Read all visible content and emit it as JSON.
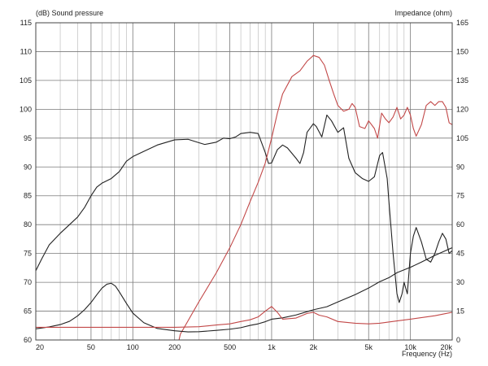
{
  "chart_data": {
    "type": "line",
    "title": "",
    "left_axis": {
      "label": "(dB)  Sound pressure",
      "range": [
        60,
        115
      ],
      "ticks": [
        60,
        65,
        70,
        75,
        80,
        85,
        90,
        95,
        100,
        105,
        110,
        115
      ]
    },
    "right_axis": {
      "label": "Impedance  (ohm)",
      "range": [
        0,
        165
      ],
      "ticks": [
        0,
        15,
        30,
        45,
        60,
        75,
        90,
        105,
        120,
        135,
        150,
        165
      ]
    },
    "x_axis": {
      "label": "Frequency  (Hz)",
      "scale": "log",
      "range": [
        20,
        20000
      ],
      "ticks": [
        {
          "value": 20,
          "label": "20"
        },
        {
          "value": 50,
          "label": "50"
        },
        {
          "value": 100,
          "label": "100"
        },
        {
          "value": 200,
          "label": "200"
        },
        {
          "value": 500,
          "label": "500"
        },
        {
          "value": 1000,
          "label": "1k"
        },
        {
          "value": 2000,
          "label": "2k"
        },
        {
          "value": 5000,
          "label": "5k"
        },
        {
          "value": 10000,
          "label": "10k"
        },
        {
          "value": 20000,
          "label": "20k"
        }
      ]
    },
    "grid": true,
    "series": [
      {
        "color": "#222222",
        "axis": "left",
        "points": [
          [
            20,
            72
          ],
          [
            22,
            74
          ],
          [
            25,
            76.5
          ],
          [
            30,
            78.5
          ],
          [
            35,
            80
          ],
          [
            40,
            81.3
          ],
          [
            45,
            83
          ],
          [
            50,
            85
          ],
          [
            55,
            86.5
          ],
          [
            60,
            87.2
          ],
          [
            70,
            88
          ],
          [
            80,
            89.2
          ],
          [
            90,
            91
          ],
          [
            100,
            91.8
          ],
          [
            120,
            92.7
          ],
          [
            150,
            93.8
          ],
          [
            200,
            94.7
          ],
          [
            250,
            94.8
          ],
          [
            300,
            94.2
          ],
          [
            330,
            93.9
          ],
          [
            400,
            94.3
          ],
          [
            450,
            95
          ],
          [
            500,
            94.9
          ],
          [
            550,
            95.2
          ],
          [
            600,
            95.8
          ],
          [
            700,
            96
          ],
          [
            800,
            95.8
          ],
          [
            900,
            92.5
          ],
          [
            950,
            90.6
          ],
          [
            1000,
            90.7
          ],
          [
            1100,
            93
          ],
          [
            1200,
            93.8
          ],
          [
            1300,
            93.3
          ],
          [
            1500,
            91.5
          ],
          [
            1600,
            90.6
          ],
          [
            1700,
            92.5
          ],
          [
            1800,
            96
          ],
          [
            2000,
            97.5
          ],
          [
            2100,
            97
          ],
          [
            2300,
            95.2
          ],
          [
            2500,
            99
          ],
          [
            2700,
            98
          ],
          [
            3000,
            96
          ],
          [
            3300,
            96.8
          ],
          [
            3600,
            91.5
          ],
          [
            4000,
            89
          ],
          [
            4500,
            88
          ],
          [
            5000,
            87.5
          ],
          [
            5500,
            88.3
          ],
          [
            6000,
            92
          ],
          [
            6300,
            92.5
          ],
          [
            6800,
            88
          ],
          [
            7000,
            84
          ],
          [
            7500,
            75
          ],
          [
            8000,
            68
          ],
          [
            8300,
            66.5
          ],
          [
            8700,
            68
          ],
          [
            9000,
            70
          ],
          [
            9500,
            68
          ],
          [
            10000,
            75
          ],
          [
            10500,
            78
          ],
          [
            11000,
            79.5
          ],
          [
            12000,
            77
          ],
          [
            13000,
            74
          ],
          [
            14000,
            73.5
          ],
          [
            15000,
            75
          ],
          [
            16000,
            77
          ],
          [
            17000,
            78.5
          ],
          [
            18000,
            77.5
          ],
          [
            19000,
            75
          ],
          [
            20000,
            75.5
          ]
        ]
      },
      {
        "color": "#c24848",
        "axis": "right",
        "points": [
          [
            200,
            -10
          ],
          [
            220,
            3
          ],
          [
            250,
            10
          ],
          [
            300,
            20
          ],
          [
            400,
            35
          ],
          [
            500,
            48
          ],
          [
            600,
            60
          ],
          [
            700,
            72
          ],
          [
            800,
            82
          ],
          [
            900,
            92
          ],
          [
            1000,
            105
          ],
          [
            1100,
            118
          ],
          [
            1200,
            128
          ],
          [
            1400,
            137
          ],
          [
            1600,
            140
          ],
          [
            1800,
            145
          ],
          [
            2000,
            148
          ],
          [
            2200,
            147
          ],
          [
            2400,
            143
          ],
          [
            2600,
            135
          ],
          [
            2800,
            128
          ],
          [
            3000,
            122
          ],
          [
            3300,
            119
          ],
          [
            3600,
            120
          ],
          [
            3800,
            123
          ],
          [
            4000,
            121
          ],
          [
            4300,
            111
          ],
          [
            4700,
            110
          ],
          [
            5000,
            114
          ],
          [
            5500,
            110
          ],
          [
            5800,
            105
          ],
          [
            6200,
            118
          ],
          [
            6600,
            115
          ],
          [
            7000,
            113
          ],
          [
            7500,
            116
          ],
          [
            8000,
            121
          ],
          [
            8500,
            115
          ],
          [
            9000,
            117
          ],
          [
            9500,
            121
          ],
          [
            10000,
            117
          ],
          [
            10500,
            110
          ],
          [
            11000,
            106
          ],
          [
            12000,
            112
          ],
          [
            13000,
            122
          ],
          [
            14000,
            124
          ],
          [
            15000,
            122
          ],
          [
            16000,
            124
          ],
          [
            17000,
            124
          ],
          [
            18000,
            121
          ],
          [
            19000,
            113
          ],
          [
            20000,
            112
          ]
        ]
      },
      {
        "color": "#222222",
        "axis": "right",
        "points": [
          [
            20,
            5.8
          ],
          [
            25,
            6.8
          ],
          [
            30,
            8
          ],
          [
            35,
            9.7
          ],
          [
            40,
            12.5
          ],
          [
            45,
            15.8
          ],
          [
            50,
            19.5
          ],
          [
            55,
            23.5
          ],
          [
            60,
            27
          ],
          [
            65,
            29
          ],
          [
            70,
            29.5
          ],
          [
            75,
            28
          ],
          [
            80,
            25
          ],
          [
            90,
            19
          ],
          [
            100,
            14
          ],
          [
            120,
            9
          ],
          [
            150,
            6
          ],
          [
            200,
            4.8
          ],
          [
            250,
            4.2
          ],
          [
            300,
            4.3
          ],
          [
            400,
            5
          ],
          [
            500,
            5.6
          ],
          [
            600,
            6.4
          ],
          [
            700,
            7.6
          ],
          [
            800,
            8.4
          ],
          [
            900,
            9.5
          ],
          [
            1000,
            10.8
          ],
          [
            1200,
            11.5
          ],
          [
            1500,
            13
          ],
          [
            2000,
            15.7
          ],
          [
            2500,
            17.3
          ],
          [
            3000,
            19.8
          ],
          [
            4000,
            23.6
          ],
          [
            5000,
            27
          ],
          [
            6000,
            30.3
          ],
          [
            7000,
            32.4
          ],
          [
            8000,
            35
          ],
          [
            10000,
            37.8
          ],
          [
            12000,
            40.5
          ],
          [
            15000,
            44
          ],
          [
            20000,
            48
          ]
        ]
      },
      {
        "color": "#c24848",
        "axis": "left",
        "points": [
          [
            20,
            62.2
          ],
          [
            50,
            62.2
          ],
          [
            100,
            62.2
          ],
          [
            200,
            62.2
          ],
          [
            300,
            62.3
          ],
          [
            400,
            62.6
          ],
          [
            500,
            62.8
          ],
          [
            600,
            63.2
          ],
          [
            700,
            63.5
          ],
          [
            800,
            64
          ],
          [
            900,
            65
          ],
          [
            1000,
            65.8
          ],
          [
            1100,
            64.8
          ],
          [
            1200,
            63.6
          ],
          [
            1500,
            63.8
          ],
          [
            1800,
            64.6
          ],
          [
            2000,
            64.8
          ],
          [
            2200,
            64.3
          ],
          [
            2500,
            64
          ],
          [
            3000,
            63.2
          ],
          [
            4000,
            62.9
          ],
          [
            5000,
            62.8
          ],
          [
            6000,
            62.9
          ],
          [
            8000,
            63.3
          ],
          [
            10000,
            63.6
          ],
          [
            15000,
            64.2
          ],
          [
            20000,
            64.8
          ]
        ]
      }
    ]
  }
}
